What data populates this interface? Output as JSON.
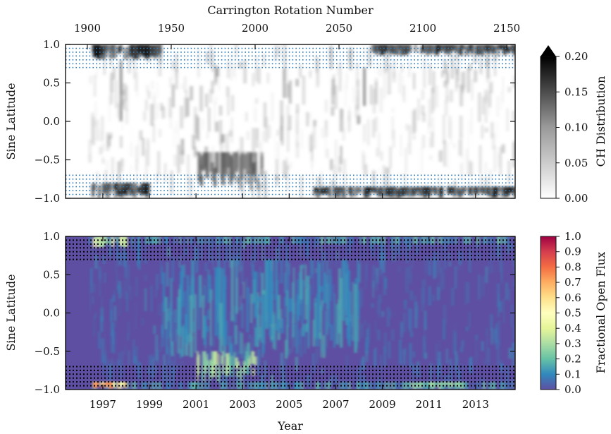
{
  "figure": {
    "top_xlabel": "Carrington Rotation Number",
    "bottom_xlabel": "Year",
    "top_ylabel": "Sine Latitude",
    "bottom_ylabel": "Sine Latitude",
    "top_colorbar_label": "CH Distribution",
    "bottom_colorbar_label": "Fractional Open Flux"
  },
  "chart_data": [
    {
      "type": "heatmap",
      "panel": "top",
      "colormap": "gray_r",
      "colorbar_extend": "max",
      "xlabel_top": "Carrington Rotation Number",
      "ylabel": "Sine Latitude",
      "colorbar_label": "CH Distribution",
      "x_top_ticks": [
        "1900",
        "1950",
        "2000",
        "2050",
        "2100",
        "2150"
      ],
      "x_top_tick_values": [
        1900,
        1950,
        2000,
        2050,
        2100,
        2150
      ],
      "xlim_carrington": [
        1887,
        2155
      ],
      "y_ticks": [
        "1.0",
        "0.5",
        "0.0",
        "−0.5",
        "−1.0"
      ],
      "y_tick_values": [
        1.0,
        0.5,
        0.0,
        -0.5,
        -1.0
      ],
      "ylim": [
        -1.0,
        1.0
      ],
      "colorbar_ticks": [
        "0.20",
        "0.15",
        "0.10",
        "0.05",
        "0.00"
      ],
      "colorbar_tick_values": [
        0.2,
        0.15,
        0.1,
        0.05,
        0.0
      ],
      "clim": [
        0.0,
        0.2
      ],
      "polar_band_overlays": [
        [
          0.7,
          0.95
        ],
        [
          -0.95,
          -0.7
        ]
      ],
      "overlay_style": "dotted blue lines",
      "features": [
        {
          "region": "north polar cap",
          "years": [
            1996.5,
            1999.5
          ],
          "sinlat": [
            0.8,
            1.0
          ],
          "value": 0.2
        },
        {
          "region": "south polar cap",
          "years": [
            1996.5,
            1999.0
          ],
          "sinlat": [
            -1.0,
            -0.8
          ],
          "value": 0.2
        },
        {
          "region": "southern mid-latitude holes",
          "years": [
            2001.0,
            2003.8
          ],
          "sinlat": [
            -0.9,
            -0.4
          ],
          "value": 0.15
        },
        {
          "region": "north polar cap",
          "years": [
            2008.5,
            2014.7
          ],
          "sinlat": [
            0.85,
            1.0
          ],
          "value": 0.2
        },
        {
          "region": "south polar cap",
          "years": [
            2006.0,
            2014.7
          ],
          "sinlat": [
            -1.0,
            -0.85
          ],
          "value": 0.2
        }
      ]
    },
    {
      "type": "heatmap",
      "panel": "bottom",
      "colormap": "Spectral_r",
      "xlabel": "Year",
      "ylabel": "Sine Latitude",
      "colorbar_label": "Fractional Open Flux",
      "x_ticks": [
        "1997",
        "1999",
        "2001",
        "2003",
        "2005",
        "2007",
        "2009",
        "2011",
        "2013"
      ],
      "x_tick_values": [
        1997,
        1999,
        2001,
        2003,
        2005,
        2007,
        2009,
        2011,
        2013
      ],
      "xlim": [
        1995.4,
        2014.7
      ],
      "y_ticks": [
        "1.0",
        "0.5",
        "0.0",
        "−0.5",
        "−1.0"
      ],
      "y_tick_values": [
        1.0,
        0.5,
        0.0,
        -0.5,
        -1.0
      ],
      "ylim": [
        -1.0,
        1.0
      ],
      "colorbar_ticks": [
        "1.0",
        "0.9",
        "0.8",
        "0.7",
        "0.6",
        "0.5",
        "0.4",
        "0.3",
        "0.2",
        "0.1",
        "0.0"
      ],
      "colorbar_tick_values": [
        1.0,
        0.9,
        0.8,
        0.7,
        0.6,
        0.5,
        0.4,
        0.3,
        0.2,
        0.1,
        0.0
      ],
      "clim": [
        0.0,
        1.0
      ],
      "polar_band_overlays": [
        [
          0.7,
          0.95
        ],
        [
          -0.95,
          -0.7
        ]
      ],
      "overlay_style": "dotted black lines",
      "features": [
        {
          "region": "north polar cap",
          "years": [
            1996.5,
            1998.0
          ],
          "sinlat": [
            0.85,
            1.0
          ],
          "value": 0.45
        },
        {
          "region": "south polar cap",
          "years": [
            1996.5,
            1998.0
          ],
          "sinlat": [
            -1.0,
            -0.9
          ],
          "value": 0.85
        },
        {
          "region": "southern mid-latitudes",
          "years": [
            2001.0,
            2003.5
          ],
          "sinlat": [
            -0.9,
            -0.5
          ],
          "value": 0.35
        },
        {
          "region": "low-latitude streaks",
          "years": [
            1999.5,
            2008.0
          ],
          "sinlat": [
            -0.6,
            0.7
          ],
          "value": 0.15
        },
        {
          "region": "south polar cap",
          "years": [
            2010.0,
            2012.5
          ],
          "sinlat": [
            -1.0,
            -0.9
          ],
          "value": 0.3
        }
      ]
    }
  ]
}
